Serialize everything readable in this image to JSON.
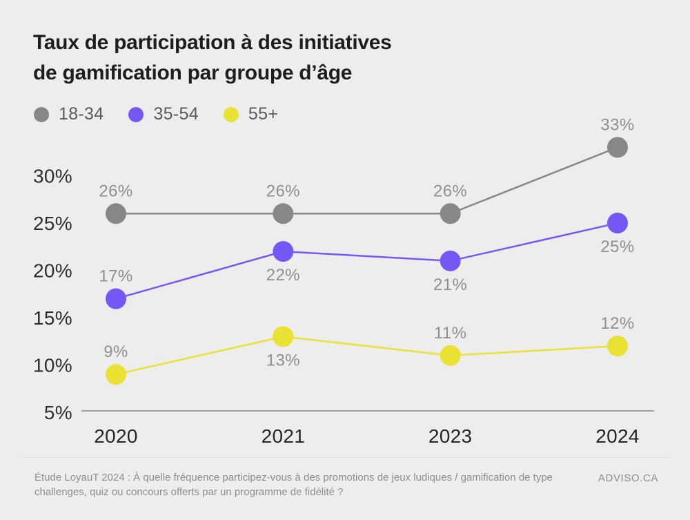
{
  "page": {
    "background_color": "#EDEDED"
  },
  "title": {
    "lines": [
      "Taux de participation à des initiatives",
      "de gamification par groupe d’âge"
    ]
  },
  "chart_data": {
    "type": "line",
    "x": [
      "2020",
      "2021",
      "2023",
      "2024"
    ],
    "series": [
      {
        "name": "18-34",
        "color": "#878787",
        "values": [
          26,
          26,
          26,
          33
        ],
        "label_positions": [
          "above",
          "above",
          "above",
          "above"
        ]
      },
      {
        "name": "35-54",
        "color": "#7557F5",
        "values": [
          17,
          22,
          21,
          25
        ],
        "label_positions": [
          "above",
          "below",
          "below",
          "below"
        ]
      },
      {
        "name": "55+",
        "color": "#E9E233",
        "values": [
          9,
          13,
          11,
          12
        ],
        "label_positions": [
          "above",
          "below",
          "above",
          "above"
        ]
      }
    ],
    "yticks": [
      30,
      25,
      20,
      15,
      10,
      5
    ],
    "ylim": [
      5,
      35
    ],
    "value_suffix": "%",
    "grid": false,
    "legend_position": "top-left",
    "axis_line_color": "#A3A3A3",
    "data_label_color": "#8F8F8F"
  },
  "footer": {
    "caption": "Étude LoyauT 2024 : À quelle fréquence participez-vous à des promotions de jeux ludiques / gamification de type challenges, quiz ou concours offerts par un programme de fidélité ?",
    "brand": "ADVISO.CA"
  }
}
